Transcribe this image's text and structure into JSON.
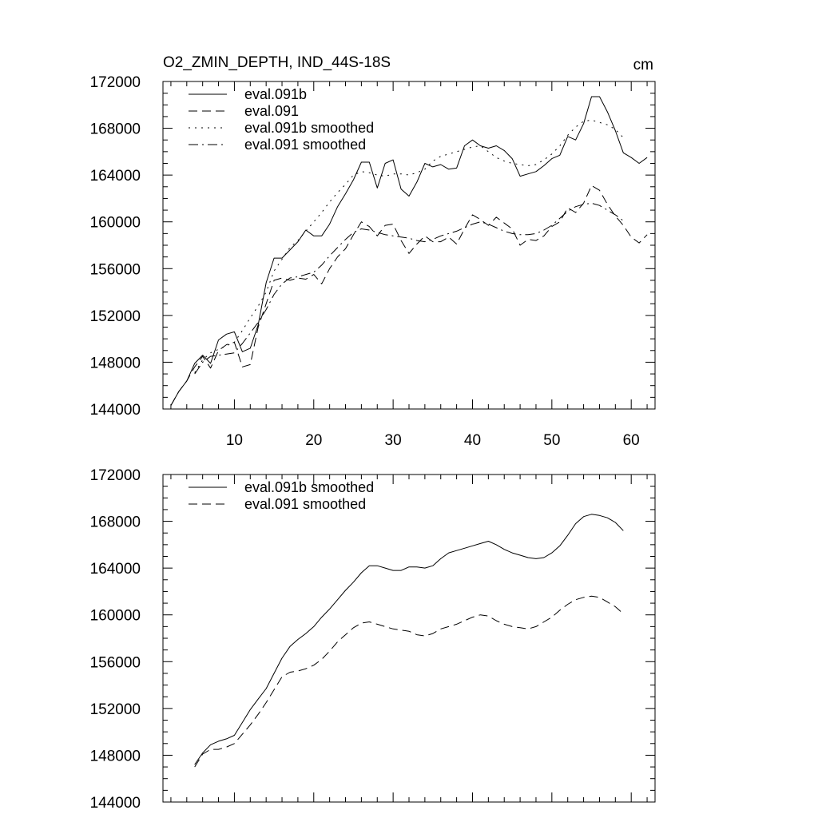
{
  "colors": {
    "line": "#000000",
    "background": "#ffffff"
  },
  "chart_data": [
    {
      "type": "line",
      "title": "O2_ZMIN_DEPTH, IND_44S-18S",
      "units": "cm",
      "xlim": [
        1,
        63
      ],
      "ylim": [
        144000,
        172000
      ],
      "xticks": [
        10,
        20,
        30,
        40,
        50,
        60
      ],
      "xtick_labels": [
        "10",
        "20",
        "30",
        "40",
        "50",
        "60"
      ],
      "yticks": [
        144000,
        148000,
        152000,
        156000,
        160000,
        164000,
        168000,
        172000
      ],
      "ytick_labels": [
        "144000",
        "148000",
        "152000",
        "156000",
        "160000",
        "164000",
        "168000",
        "172000"
      ],
      "legend_position": "top-left",
      "series": [
        {
          "name": "eval.091b",
          "dash": "solid",
          "x": [
            2,
            3,
            4,
            5,
            6,
            7,
            8,
            9,
            10,
            11,
            12,
            13,
            14,
            15,
            16,
            17,
            18,
            19,
            20,
            21,
            22,
            23,
            24,
            25,
            26,
            27,
            28,
            29,
            30,
            31,
            32,
            33,
            34,
            35,
            36,
            37,
            38,
            39,
            40,
            41,
            42,
            43,
            44,
            45,
            46,
            47,
            48,
            49,
            50,
            51,
            52,
            53,
            54,
            55,
            56,
            57,
            58,
            59,
            60,
            61,
            62
          ],
          "y": [
            144300,
            145500,
            146400,
            147900,
            148600,
            147900,
            149900,
            150400,
            150600,
            148900,
            149200,
            151200,
            154800,
            156900,
            156900,
            157600,
            158300,
            159300,
            158800,
            158800,
            159800,
            161300,
            162400,
            163600,
            165100,
            165100,
            162900,
            165000,
            165300,
            162800,
            162200,
            163400,
            165000,
            164700,
            164900,
            164500,
            164600,
            166500,
            167000,
            166500,
            166300,
            166500,
            166100,
            165400,
            163900,
            164100,
            164300,
            164800,
            165400,
            165700,
            167300,
            167000,
            168400,
            170700,
            170700,
            169400,
            167800,
            165900,
            165500,
            165000,
            165500
          ]
        },
        {
          "name": "eval.091",
          "dash": "dashed",
          "x": [
            2,
            3,
            4,
            5,
            6,
            7,
            8,
            9,
            10,
            11,
            12,
            13,
            14,
            15,
            16,
            17,
            18,
            19,
            20,
            21,
            22,
            23,
            24,
            25,
            26,
            27,
            28,
            29,
            30,
            31,
            32,
            33,
            34,
            35,
            36,
            37,
            38,
            39,
            40,
            41,
            42,
            43,
            44,
            45,
            46,
            47,
            48,
            49,
            50,
            51,
            52,
            53,
            54,
            55,
            56,
            57,
            58,
            59,
            60,
            61,
            62
          ],
          "y": [
            144300,
            145500,
            146400,
            147600,
            148500,
            147500,
            149000,
            149500,
            149700,
            147600,
            147800,
            151000,
            153000,
            155000,
            155200,
            155000,
            155200,
            155100,
            155500,
            154700,
            156000,
            157000,
            157700,
            158900,
            160000,
            159600,
            158800,
            159700,
            159800,
            158400,
            157300,
            158100,
            158800,
            158300,
            158300,
            158700,
            158100,
            159400,
            160600,
            160200,
            159700,
            160400,
            159900,
            159400,
            158000,
            158500,
            158400,
            158800,
            159600,
            160000,
            161200,
            160800,
            161600,
            163100,
            162700,
            161500,
            160500,
            159700,
            158700,
            158200,
            158900
          ]
        },
        {
          "name": "eval.091b smoothed",
          "dash": "dotted",
          "x": [
            5,
            6,
            7,
            8,
            9,
            10,
            11,
            12,
            13,
            14,
            15,
            16,
            17,
            18,
            19,
            20,
            21,
            22,
            23,
            24,
            25,
            26,
            27,
            28,
            29,
            30,
            31,
            32,
            33,
            34,
            35,
            36,
            37,
            38,
            39,
            40,
            41,
            42,
            43,
            44,
            45,
            46,
            47,
            48,
            49,
            50,
            51,
            52,
            53,
            54,
            55,
            56,
            57,
            58,
            59
          ],
          "y": [
            147100,
            148200,
            148800,
            149100,
            149400,
            149700,
            150700,
            151800,
            152800,
            154000,
            155800,
            156800,
            157800,
            158400,
            159200,
            160000,
            160800,
            161700,
            162500,
            163200,
            164000,
            164300,
            164200,
            164000,
            163900,
            164100,
            164100,
            164000,
            164200,
            164500,
            165200,
            165600,
            165800,
            166000,
            166200,
            166400,
            166500,
            166000,
            165500,
            165200,
            165000,
            164900,
            164800,
            164900,
            165300,
            165800,
            166500,
            167400,
            168100,
            168600,
            168700,
            168500,
            168300,
            167900,
            167200
          ]
        },
        {
          "name": "eval.091 smoothed",
          "dash": "dashdot",
          "x": [
            5,
            6,
            7,
            8,
            9,
            10,
            11,
            12,
            13,
            14,
            15,
            16,
            17,
            18,
            19,
            20,
            21,
            22,
            23,
            24,
            25,
            26,
            27,
            28,
            29,
            30,
            31,
            32,
            33,
            34,
            35,
            36,
            37,
            38,
            39,
            40,
            41,
            42,
            43,
            44,
            45,
            46,
            47,
            48,
            49,
            50,
            51,
            52,
            53,
            54,
            55,
            56,
            57,
            58,
            59
          ],
          "y": [
            147000,
            148000,
            148500,
            148600,
            148700,
            148800,
            149600,
            150500,
            151400,
            152500,
            153800,
            154700,
            155200,
            155300,
            155500,
            155700,
            156300,
            157100,
            157800,
            158500,
            159100,
            159400,
            159300,
            159100,
            158900,
            158800,
            158700,
            158600,
            158400,
            158300,
            158500,
            158800,
            159000,
            159200,
            159500,
            159800,
            160000,
            159800,
            159500,
            159200,
            159000,
            158900,
            158900,
            159000,
            159300,
            159700,
            160300,
            160900,
            161300,
            161500,
            161600,
            161400,
            161000,
            160600,
            160100
          ]
        }
      ]
    },
    {
      "type": "line",
      "title": "",
      "units": "",
      "xlim": [
        1,
        63
      ],
      "ylim": [
        144000,
        172000
      ],
      "xticks": [
        10,
        20,
        30,
        40,
        50,
        60
      ],
      "yticks": [
        144000,
        148000,
        152000,
        156000,
        160000,
        164000,
        168000,
        172000
      ],
      "ytick_labels": [
        "144000",
        "148000",
        "152000",
        "156000",
        "160000",
        "164000",
        "168000",
        "172000"
      ],
      "legend_position": "top-left",
      "series": [
        {
          "name": "eval.091b smoothed",
          "dash": "solid",
          "x": [
            5,
            6,
            7,
            8,
            9,
            10,
            11,
            12,
            13,
            14,
            15,
            16,
            17,
            18,
            19,
            20,
            21,
            22,
            23,
            24,
            25,
            26,
            27,
            28,
            29,
            30,
            31,
            32,
            33,
            34,
            35,
            36,
            37,
            38,
            39,
            40,
            41,
            42,
            43,
            44,
            45,
            46,
            47,
            48,
            49,
            50,
            51,
            52,
            53,
            54,
            55,
            56,
            57,
            58,
            59
          ],
          "y": [
            147200,
            148200,
            148900,
            149200,
            149400,
            149700,
            150800,
            151900,
            152800,
            153700,
            155000,
            156300,
            157300,
            157900,
            158400,
            159000,
            159800,
            160500,
            161300,
            162100,
            162800,
            163600,
            164200,
            164200,
            164000,
            163800,
            163800,
            164100,
            164100,
            164000,
            164200,
            164800,
            165300,
            165500,
            165700,
            165900,
            166100,
            166300,
            166000,
            165600,
            165300,
            165100,
            164900,
            164800,
            164900,
            165300,
            165900,
            166800,
            167800,
            168400,
            168600,
            168500,
            168300,
            167900,
            167200
          ]
        },
        {
          "name": "eval.091 smoothed",
          "dash": "dashed",
          "x": [
            5,
            6,
            7,
            8,
            9,
            10,
            11,
            12,
            13,
            14,
            15,
            16,
            17,
            18,
            19,
            20,
            21,
            22,
            23,
            24,
            25,
            26,
            27,
            28,
            29,
            30,
            31,
            32,
            33,
            34,
            35,
            36,
            37,
            38,
            39,
            40,
            41,
            42,
            43,
            44,
            45,
            46,
            47,
            48,
            49,
            50,
            51,
            52,
            53,
            54,
            55,
            56,
            57,
            58,
            59
          ],
          "y": [
            147000,
            148100,
            148500,
            148500,
            148700,
            149000,
            149800,
            150600,
            151500,
            152500,
            153600,
            154700,
            155100,
            155200,
            155400,
            155700,
            156200,
            156900,
            157700,
            158300,
            158900,
            159300,
            159400,
            159200,
            159000,
            158800,
            158700,
            158600,
            158300,
            158200,
            158400,
            158800,
            159000,
            159200,
            159500,
            159800,
            160000,
            159900,
            159500,
            159200,
            159000,
            158900,
            158800,
            159000,
            159400,
            159800,
            160400,
            160900,
            161300,
            161500,
            161600,
            161500,
            161100,
            160700,
            160100
          ]
        }
      ]
    }
  ]
}
